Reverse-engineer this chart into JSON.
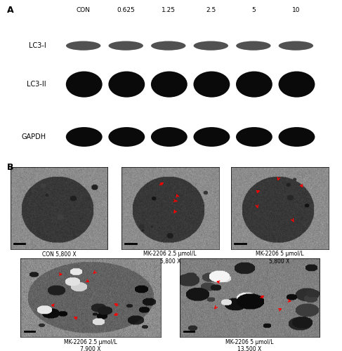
{
  "panel_A_label": "A",
  "panel_B_label": "B",
  "concentrations": [
    "CON",
    "0.625",
    "1.25",
    "2.5",
    "5",
    "10"
  ],
  "wb_bg_color": "#c5daea",
  "wb_band_color_dark": "#111111",
  "wb_band_color_mid": "#2a2a2a",
  "em_captions": [
    "CON 5,800 X",
    "MK-2206 2.5 μmol/L\n5,800 X",
    "MK-2206 5 μmol/L\n5,800 X",
    "MK-2206 2.5 μmol/L\n7,900 X",
    "MK-2206 5 μmol/L\n13,500 X"
  ],
  "figure_bg": "#ffffff",
  "font_size_labels": 7,
  "font_size_conc": 6.5,
  "font_size_panel": 9,
  "font_size_caption": 5.5
}
